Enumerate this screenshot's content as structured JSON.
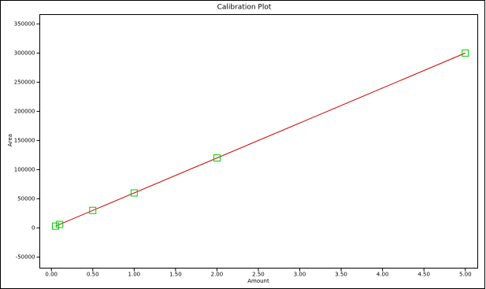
{
  "chart_data": {
    "type": "scatter",
    "title": "Calibration Plot",
    "x_label": "Amount",
    "y_label": "Area",
    "series": [
      {
        "color": "#cc0000",
        "style": "line",
        "x": [
          0.05,
          5.0
        ],
        "values": [
          3000,
          300000
        ]
      },
      {
        "color": "#00cc00",
        "style": "square",
        "x": [
          0.05,
          0.1,
          0.5,
          1.0,
          2.0,
          5.0
        ],
        "values": [
          3000,
          6000,
          30000,
          60000,
          120000,
          300000
        ]
      }
    ],
    "xlim": [
      -0.14,
      5.15
    ],
    "xticks": [
      {
        "value": 0,
        "label": "0.00"
      },
      {
        "value": 0.5,
        "label": "0.50"
      },
      {
        "value": 1,
        "label": "1.00"
      },
      {
        "value": 1.5,
        "label": "1.50"
      },
      {
        "value": 2,
        "label": "2.00"
      },
      {
        "value": 2.5,
        "label": "2.50"
      },
      {
        "value": 3,
        "label": "3.00"
      },
      {
        "value": 3.5,
        "label": "3.50"
      },
      {
        "value": 4,
        "label": "4.00"
      },
      {
        "value": 4.5,
        "label": "4.50"
      },
      {
        "value": 5,
        "label": "5.00"
      }
    ],
    "ylim": [
      -69000,
      366000
    ],
    "yticks": [
      -50000,
      0,
      50000,
      100000,
      150000,
      200000,
      250000,
      300000,
      350000
    ]
  }
}
